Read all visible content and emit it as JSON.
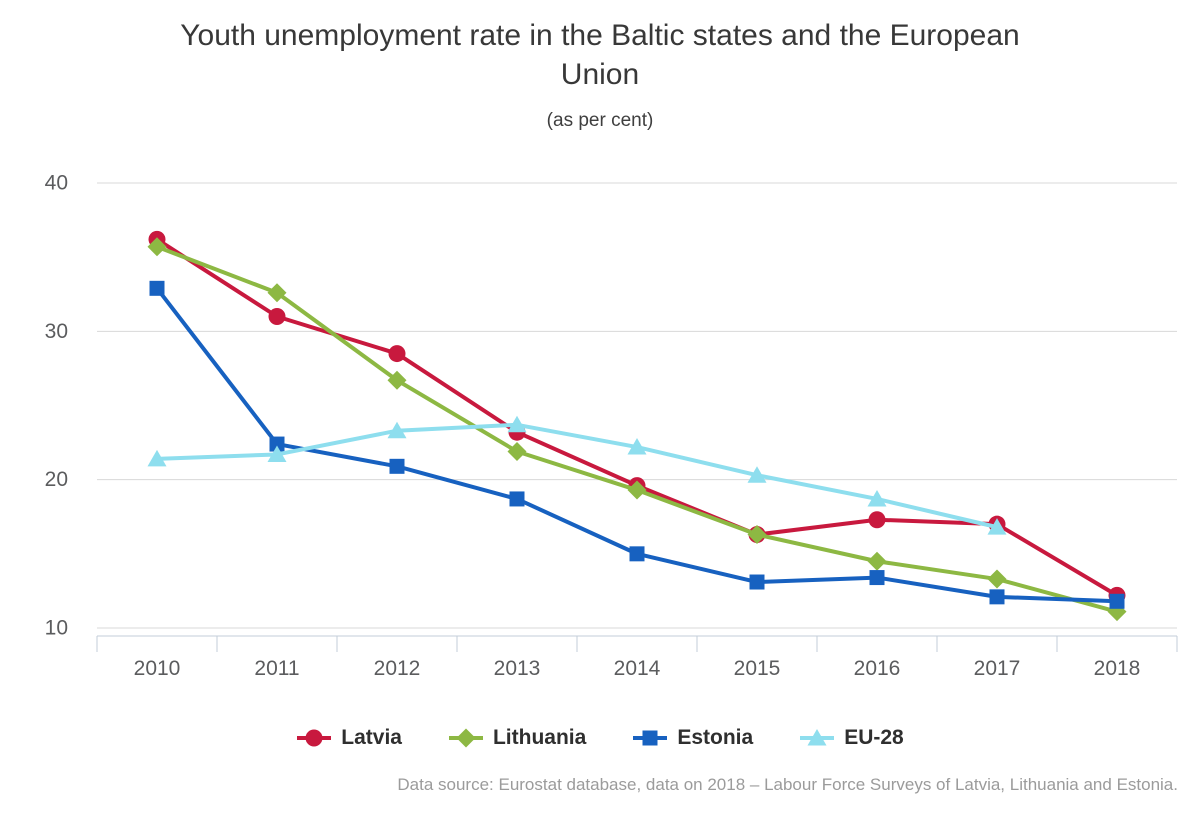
{
  "chart": {
    "title": "Youth unemployment rate in the Baltic states and the European Union",
    "subtitle": "(as per cent)",
    "footer": "Data source: Eurostat database, data on 2018 – Labour Force Surveys of Latvia, Lithuania and Estonia."
  },
  "chart_data": {
    "type": "line",
    "title": "Youth unemployment rate in the Baltic states and the European Union",
    "subtitle": "(as per cent)",
    "xlabel": "",
    "ylabel": "",
    "categories": [
      "2010",
      "2011",
      "2012",
      "2013",
      "2014",
      "2015",
      "2016",
      "2017",
      "2018"
    ],
    "series": [
      {
        "name": "Latvia",
        "color": "#c8193e",
        "marker": "circle",
        "values": [
          36.2,
          31.0,
          28.5,
          23.2,
          19.6,
          16.3,
          17.3,
          17.0,
          12.2
        ]
      },
      {
        "name": "Lithuania",
        "color": "#8db843",
        "marker": "diamond",
        "values": [
          35.7,
          32.6,
          26.7,
          21.9,
          19.3,
          16.3,
          14.5,
          13.3,
          11.1
        ]
      },
      {
        "name": "Estonia",
        "color": "#1761c0",
        "marker": "square",
        "values": [
          32.9,
          22.4,
          20.9,
          18.7,
          15.0,
          13.1,
          13.4,
          12.1,
          11.8
        ]
      },
      {
        "name": "EU-28",
        "color": "#8edeee",
        "marker": "triangle",
        "values": [
          21.4,
          21.7,
          23.3,
          23.7,
          22.2,
          20.3,
          18.7,
          16.8,
          null
        ]
      }
    ],
    "yticks": [
      10,
      20,
      30,
      40
    ],
    "ylim": [
      9.4,
      41
    ],
    "grid": true,
    "legend_position": "bottom"
  },
  "appearance": {
    "gridline_color": "#d8d8d8",
    "axis_color": "#c3ced9",
    "axis_label_color": "#5b5c5e",
    "title_color": "#383838",
    "legend_text_color": "#2f2f2f",
    "footer_color": "#9b9b9b",
    "background": "#ffffff"
  }
}
